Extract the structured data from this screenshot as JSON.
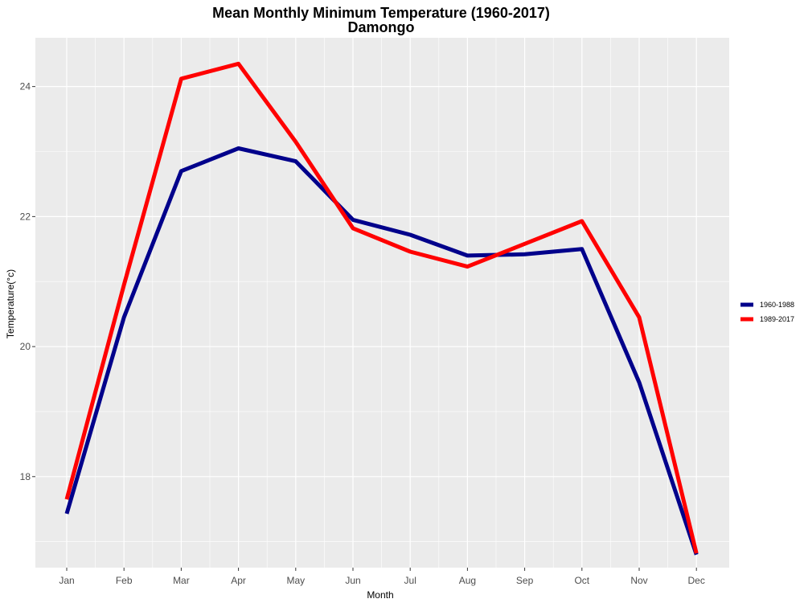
{
  "chart_data": {
    "type": "line",
    "title": "Mean Monthly Minimum Temperature (1960-2017)",
    "subtitle": "Damongo",
    "xlabel": "Month",
    "ylabel": "Temperature(°c)",
    "categories": [
      "Jan",
      "Feb",
      "Mar",
      "Apr",
      "May",
      "Jun",
      "Jul",
      "Aug",
      "Sep",
      "Oct",
      "Nov",
      "Dec"
    ],
    "ylim": [
      16.6,
      24.75
    ],
    "yticks": [
      18,
      20,
      22,
      24
    ],
    "grid": true,
    "legend_position": "right",
    "series": [
      {
        "name": "1960-1988",
        "color": "#00008b",
        "values": [
          17.43,
          20.45,
          22.7,
          23.05,
          22.85,
          21.95,
          21.72,
          21.4,
          21.42,
          21.5,
          19.45,
          16.8
        ]
      },
      {
        "name": "1989-2017",
        "color": "#ff0000",
        "values": [
          17.65,
          20.95,
          24.12,
          24.35,
          23.15,
          21.82,
          21.46,
          21.23,
          21.58,
          21.93,
          20.45,
          16.82
        ]
      }
    ]
  }
}
